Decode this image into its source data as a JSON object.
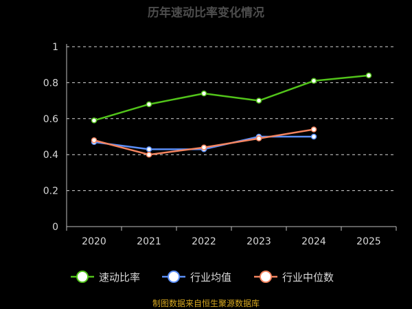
{
  "chart_data": {
    "type": "line",
    "title": "历年速动比率变化情况",
    "categories": [
      "2020",
      "2021",
      "2022",
      "2023",
      "2024",
      "2025"
    ],
    "ylim": [
      0,
      1
    ],
    "yticks": [
      "0",
      "0.2",
      "0.4",
      "0.6",
      "0.8",
      "1"
    ],
    "grid": true,
    "legend_position": "bottom",
    "series": [
      {
        "name": "速动比率",
        "color": "#52c41a",
        "values": [
          0.59,
          0.68,
          0.74,
          0.7,
          0.81,
          0.84
        ]
      },
      {
        "name": "行业均值",
        "color": "#5b8ff9",
        "values": [
          0.47,
          0.43,
          0.43,
          0.5,
          0.5,
          null
        ]
      },
      {
        "name": "行业中位数",
        "color": "#f4845f",
        "values": [
          0.48,
          0.4,
          0.44,
          0.49,
          0.54,
          null
        ]
      }
    ],
    "source": "制图数据来自恒生聚源数据库"
  }
}
